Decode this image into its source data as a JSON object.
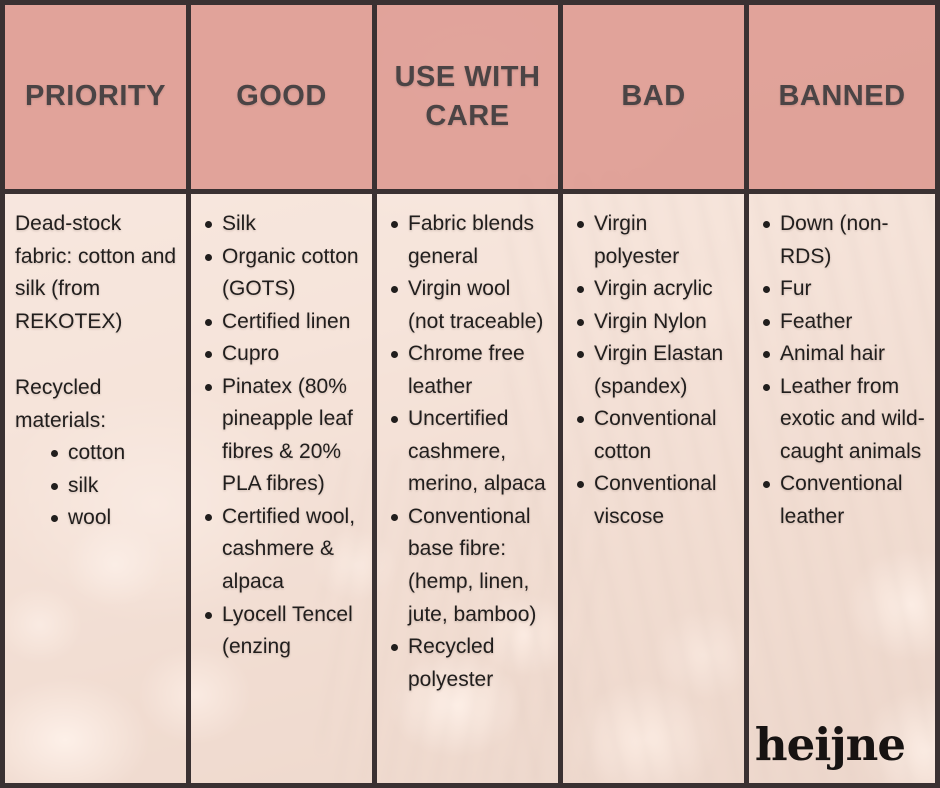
{
  "table": {
    "columns": [
      {
        "id": "priority",
        "header": "PRIORITY",
        "blocks": [
          {
            "type": "paragraph",
            "text": "Dead-stock fabric: cotton and silk (from REKOTEX)"
          },
          {
            "type": "spacer"
          },
          {
            "type": "paragraph",
            "text": "Recycled materials:"
          },
          {
            "type": "bullets",
            "nested": true,
            "items": [
              "cotton",
              "silk",
              "wool"
            ]
          }
        ]
      },
      {
        "id": "good",
        "header": "GOOD",
        "blocks": [
          {
            "type": "bullets",
            "items": [
              "Silk",
              "Organic cotton (GOTS)",
              "Certified linen",
              "Cupro",
              "Pinatex (80% pineapple leaf fibres & 20% PLA fibres)",
              "Certified wool, cashmere & alpaca",
              "Lyocell Tencel (enzing"
            ]
          }
        ]
      },
      {
        "id": "use-with-care",
        "header": "USE WITH CARE",
        "blocks": [
          {
            "type": "bullets",
            "items": [
              "Fabric blends general",
              "Virgin wool (not traceable)",
              "Chrome free leather",
              "Uncertified cashmere, merino, alpaca",
              "Conventional base fibre: (hemp, linen, jute, bamboo)",
              "Recycled polyester"
            ]
          }
        ]
      },
      {
        "id": "bad",
        "header": "BAD",
        "blocks": [
          {
            "type": "bullets",
            "items": [
              "Virgin polyester",
              "Virgin acrylic",
              "Virgin Nylon",
              "Virgin Elastan (spandex)",
              "Conventional cotton",
              "Conventional viscose"
            ]
          }
        ]
      },
      {
        "id": "banned",
        "header": "BANNED",
        "blocks": [
          {
            "type": "bullets",
            "items": [
              "Down (non-RDS)",
              "Fur",
              "Feather",
              "Animal hair",
              "Leather from exotic and wild-caught animals",
              "Conventional leather"
            ]
          }
        ]
      }
    ]
  },
  "logo": {
    "text": "heijne"
  },
  "colors": {
    "header_bg": "#e09f97",
    "border": "#3a3132",
    "body_tint": "#fdf0ea",
    "body_text": "#211e1d",
    "header_text": "#4b4445",
    "logo_text": "#171312"
  }
}
